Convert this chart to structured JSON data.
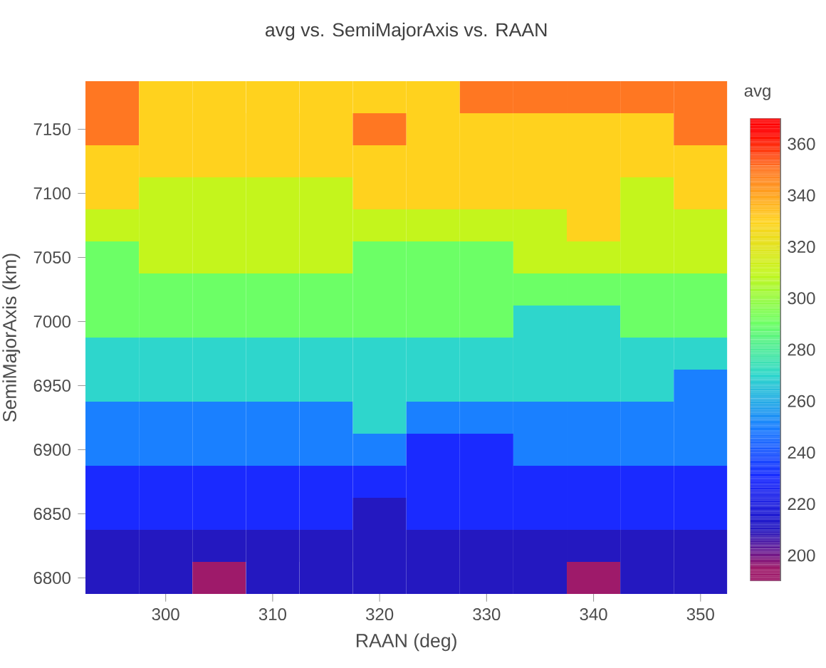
{
  "chart_data": {
    "type": "heatmap",
    "title": "avg vs. SemiMajorAxis vs. RAAN",
    "xlabel": "RAAN (deg)",
    "ylabel": "SemiMajorAxis (km)",
    "clabel": "avg",
    "categories": [
      null,
      "300",
      null,
      "310",
      null,
      "320",
      null,
      "330",
      null,
      "340",
      null,
      "350"
    ],
    "y_categories": [
      null,
      "7150",
      null,
      "7100",
      null,
      "7050",
      null,
      "7000",
      null,
      "6950",
      null,
      "6900",
      null,
      "6850",
      null,
      "6800"
    ],
    "clim": [
      190,
      370
    ],
    "cticks": [
      200,
      220,
      240,
      260,
      280,
      300,
      320,
      340,
      360
    ],
    "colors": [
      "#9e1a6a",
      "#2418c0",
      "#1a2aff",
      "#1a80ff",
      "#2ed6cc",
      "#6cff66",
      "#c4f51c",
      "#ffd21e",
      "#ff7722",
      "#ff0000"
    ],
    "cells": [
      [
        350,
        330,
        330,
        330,
        330,
        330,
        330,
        350,
        350,
        350,
        350,
        350
      ],
      [
        350,
        330,
        330,
        330,
        330,
        350,
        330,
        330,
        330,
        330,
        330,
        350
      ],
      [
        330,
        330,
        330,
        330,
        330,
        330,
        330,
        330,
        330,
        330,
        330,
        330
      ],
      [
        330,
        310,
        310,
        310,
        310,
        330,
        330,
        330,
        330,
        330,
        310,
        330
      ],
      [
        310,
        310,
        310,
        310,
        310,
        310,
        310,
        310,
        310,
        330,
        310,
        310
      ],
      [
        290,
        310,
        310,
        310,
        310,
        290,
        290,
        290,
        310,
        310,
        310,
        310
      ],
      [
        290,
        290,
        290,
        290,
        290,
        290,
        290,
        290,
        290,
        290,
        290,
        290
      ],
      [
        290,
        290,
        290,
        290,
        290,
        290,
        290,
        290,
        270,
        270,
        290,
        290
      ],
      [
        270,
        270,
        270,
        270,
        270,
        270,
        270,
        270,
        270,
        270,
        270,
        270
      ],
      [
        270,
        270,
        270,
        270,
        270,
        270,
        270,
        270,
        270,
        270,
        270,
        250
      ],
      [
        250,
        250,
        250,
        250,
        250,
        270,
        250,
        250,
        250,
        250,
        250,
        250
      ],
      [
        250,
        250,
        250,
        250,
        250,
        250,
        230,
        230,
        250,
        250,
        250,
        250
      ],
      [
        230,
        230,
        230,
        230,
        230,
        230,
        230,
        230,
        230,
        230,
        230,
        230
      ],
      [
        230,
        230,
        230,
        230,
        230,
        210,
        230,
        230,
        230,
        230,
        230,
        230
      ],
      [
        210,
        210,
        210,
        210,
        210,
        210,
        210,
        210,
        210,
        210,
        210,
        210
      ],
      [
        210,
        210,
        195,
        210,
        210,
        210,
        210,
        210,
        210,
        195,
        210,
        210
      ]
    ]
  }
}
